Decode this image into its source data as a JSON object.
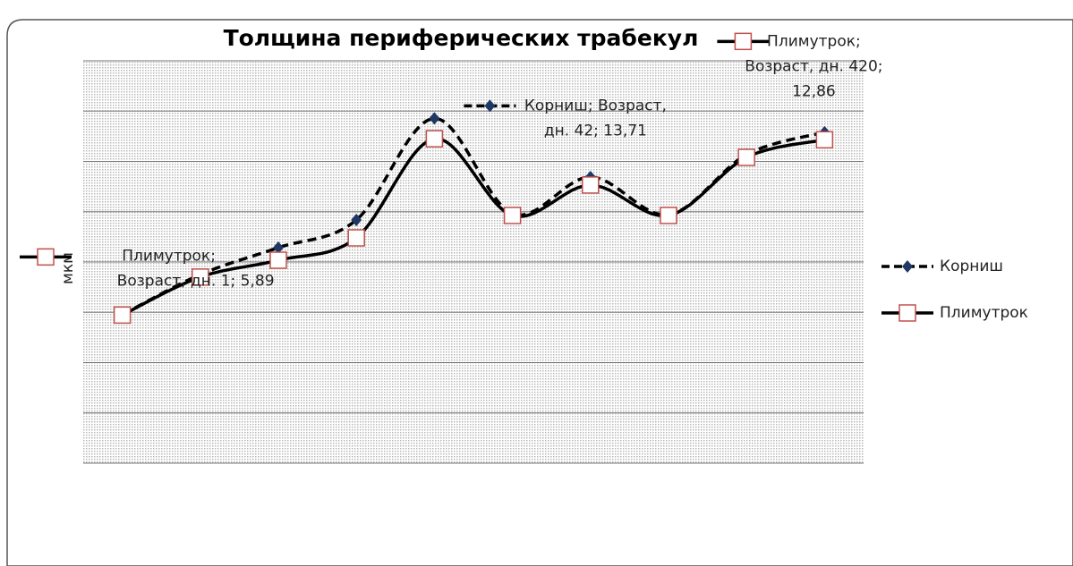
{
  "chart_data": {
    "type": "line",
    "title": "Толщина периферических трабекул",
    "y_label": "мкм",
    "categories": [
      null,
      null,
      null,
      null,
      null,
      null,
      null,
      null,
      null,
      null
    ],
    "ylim": [
      0,
      16
    ],
    "yticks": [
      0,
      2,
      4,
      6,
      8,
      10,
      12,
      14,
      16
    ],
    "grid": true,
    "smooth": true,
    "legend": "right",
    "series": [
      {
        "name": "Корниш",
        "color": "#000000",
        "marker_color": "#1f3864",
        "dash": true,
        "values": [
          5.9,
          7.5,
          8.57,
          9.67,
          13.71,
          9.92,
          11.38,
          9.88,
          12.27,
          13.16
        ],
        "value_labels": [
          null,
          null,
          null,
          null,
          [
            "Корниш; Возраст,",
            "дн. 42; 13,71"
          ],
          null,
          null,
          null,
          null,
          null
        ]
      },
      {
        "name": "Плимутрок",
        "color": "#000000",
        "marker_color": "#c0504d",
        "dash": false,
        "values": [
          5.89,
          7.4,
          8.07,
          8.96,
          12.9,
          9.85,
          11.06,
          9.85,
          12.16,
          12.86
        ],
        "value_labels": [
          [
            "Плимутрок;",
            "Возраст, дн. 1; 5,89"
          ],
          null,
          null,
          null,
          null,
          null,
          null,
          null,
          null,
          [
            "Плимутрок;",
            "Возраст, дн. 420;",
            "12,86"
          ]
        ]
      }
    ]
  }
}
